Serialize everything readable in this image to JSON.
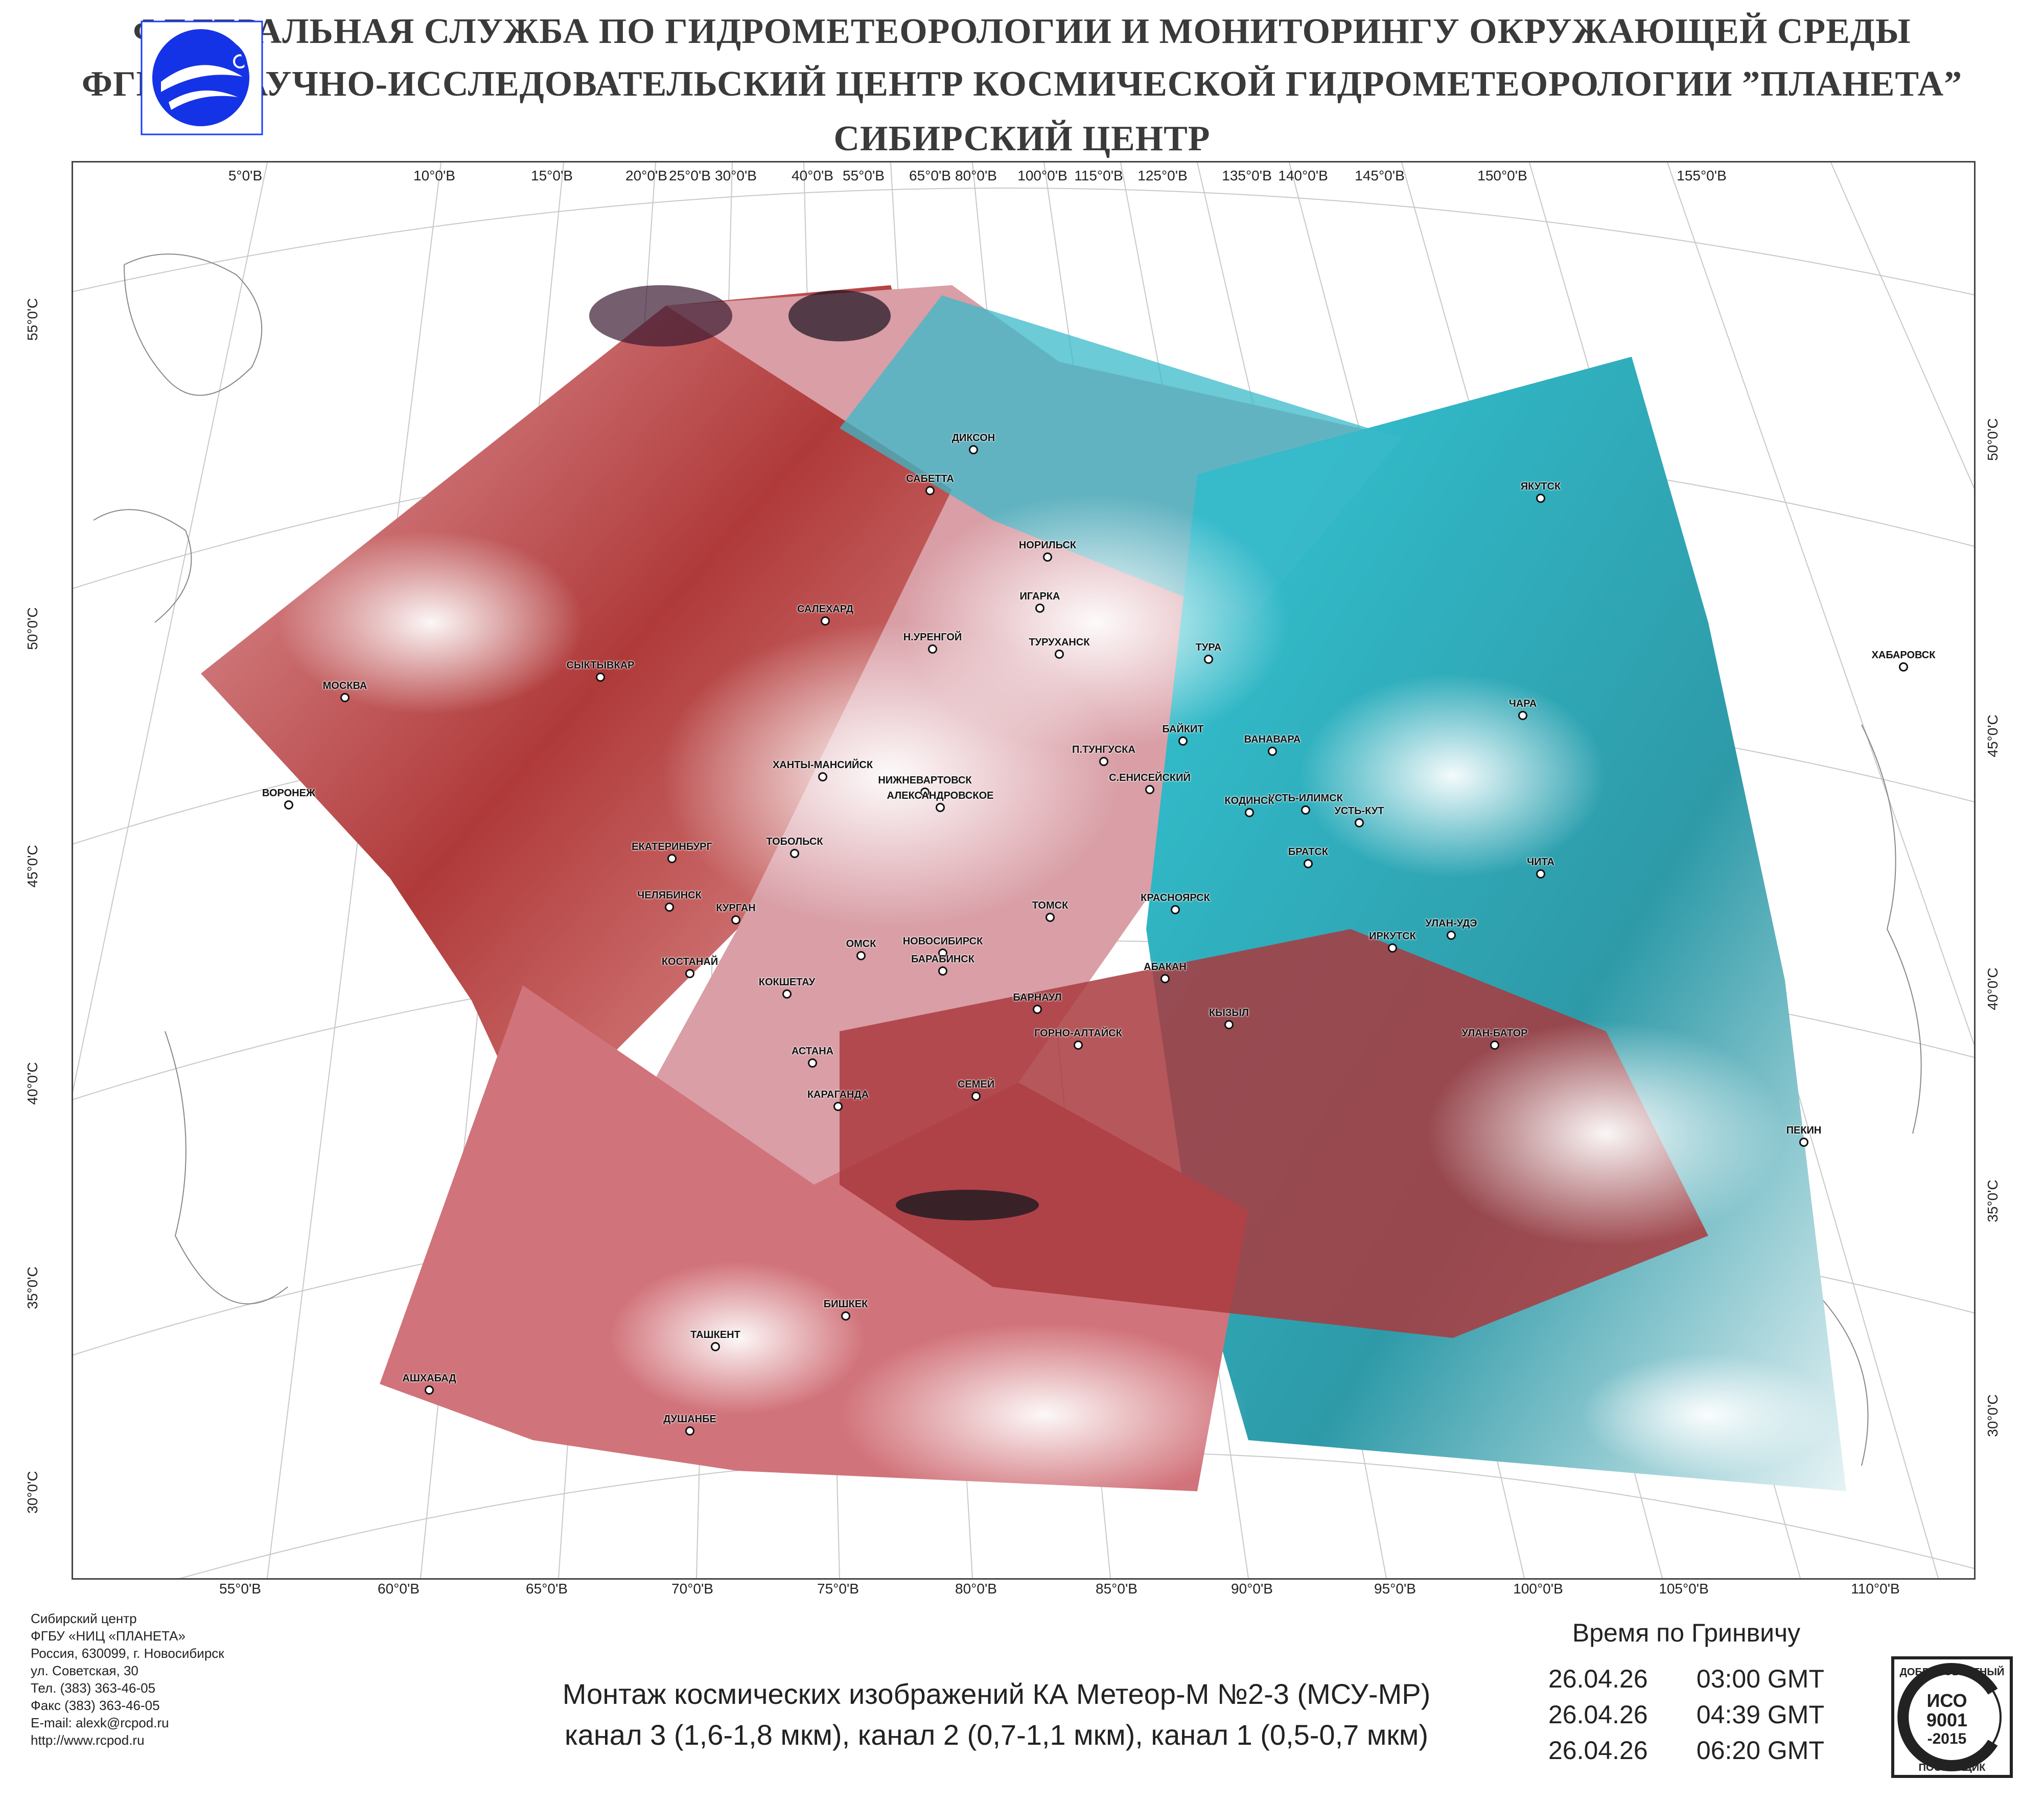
{
  "header": {
    "line1": "ФЕДЕРАЛЬНАЯ СЛУЖБА ПО ГИДРОМЕТЕОРОЛОГИИ И МОНИТОРИНГУ ОКРУЖАЮЩЕЙ СРЕДЫ",
    "line2": "ФГБУ “НАУЧНО-ИССЛЕДОВАТЕЛЬСКИЙ ЦЕНТР КОСМИЧЕСКОЙ ГИДРОМЕТЕОРОЛОГИИ ”ПЛАНЕТА”",
    "line3": "СИБИРСКИЙ  ЦЕНТР"
  },
  "map": {
    "top_labels": [
      "5°0'В",
      "10°0'В",
      "15°0'В",
      "20°0'В",
      "25°0'В",
      "30°0'В",
      "40°0'В",
      "55°0'В",
      "65°0'В",
      "80°0'В",
      "100°0'В",
      "115°0'В",
      "125°0'В",
      "135°0'В",
      "140°0'В",
      "145°0'В",
      "150°0'В",
      "155°0'В"
    ],
    "bottom_labels": [
      "55°0'В",
      "60°0'В",
      "65°0'В",
      "70°0'В",
      "75°0'В",
      "80°0'В",
      "85°0'В",
      "90°0'В",
      "95°0'В",
      "100°0'В",
      "105°0'В",
      "110°0'В"
    ],
    "left_labels": [
      "55°0'С",
      "50°0'С",
      "45°0'С",
      "40°0'С",
      "35°0'С",
      "30°0'С"
    ],
    "right_labels": [
      "50°0'С",
      "45°0'С",
      "40°0'С",
      "35°0'С",
      "30°0'С"
    ],
    "cities": [
      {
        "name": "ДИКСОН"
      },
      {
        "name": "САБЕТТА"
      },
      {
        "name": "НОРИЛЬСК"
      },
      {
        "name": "ЯКУТСК"
      },
      {
        "name": "ИГАРКА"
      },
      {
        "name": "САЛЕХАРД"
      },
      {
        "name": "Н.УРЕНГОЙ"
      },
      {
        "name": "ТУРУХАНСК"
      },
      {
        "name": "ТУРА"
      },
      {
        "name": "ХАБАРОВСК"
      },
      {
        "name": "СЫКТЫВКАР"
      },
      {
        "name": "МОСКВА"
      },
      {
        "name": "ЧАРА"
      },
      {
        "name": "БАЙКИТ"
      },
      {
        "name": "ВАНАВАРА"
      },
      {
        "name": "П.ТУНГУСКА"
      },
      {
        "name": "ХАНТЫ-МАНСИЙСК"
      },
      {
        "name": "НИЖНЕВАРТОВСК"
      },
      {
        "name": "ВОРОНЕЖ"
      },
      {
        "name": "С.ЕНИСЕЙСКИЙ"
      },
      {
        "name": "УСТЬ-ИЛИМСК"
      },
      {
        "name": "КОДИНСК"
      },
      {
        "name": "УСТЬ-КУТ"
      },
      {
        "name": "АЛЕКСАНДРОВСКОЕ"
      },
      {
        "name": "ЕКАТЕРИНБУРГ"
      },
      {
        "name": "ТОБОЛЬСК"
      },
      {
        "name": "ЧИТА"
      },
      {
        "name": "БРАТСК"
      },
      {
        "name": "ЧЕЛЯБИНСК"
      },
      {
        "name": "ТОМСК"
      },
      {
        "name": "КРАСНОЯРСК"
      },
      {
        "name": "КУРГАН"
      },
      {
        "name": "ОМСК"
      },
      {
        "name": "НОВОСИБИРСК"
      },
      {
        "name": "ИРКУТСК"
      },
      {
        "name": "УЛАН-УДЭ"
      },
      {
        "name": "БАРАБИНСК"
      },
      {
        "name": "КОСТАНАЙ"
      },
      {
        "name": "КОКШЕТАУ"
      },
      {
        "name": "БАРНАУЛ"
      },
      {
        "name": "АБАКАН"
      },
      {
        "name": "КЫЗЫЛ"
      },
      {
        "name": "ГОРНО-АЛТАЙСК"
      },
      {
        "name": "УЛАН-БАТОР"
      },
      {
        "name": "АСТАНА"
      },
      {
        "name": "СЕМЕЙ"
      },
      {
        "name": "КАРАГАНДА"
      },
      {
        "name": "ПЕКИН"
      },
      {
        "name": "БИШКЕК"
      },
      {
        "name": "ТАШКЕНТ"
      },
      {
        "name": "АШХАБАД"
      },
      {
        "name": "ДУШАНБЕ"
      }
    ]
  },
  "address": {
    "lines": [
      "Сибирский центр",
      "ФГБУ «НИЦ «ПЛАНЕТА»",
      "Россия, 630099, г. Новосибирск",
      "ул. Советская, 30",
      "Тел. (383) 363-46-05",
      "Факс (383) 363-46-05",
      "E-mail: alexk@rcpod.ru",
      "http://www.rcpod.ru"
    ]
  },
  "caption": {
    "line1": "Монтаж космических изображений КА Метеор-М №2-3 (МСУ-МР)",
    "line2": "канал 3 (1,6-1,8 мкм), канал 2 (0,7-1,1 мкм), канал 1 (0,5-0,7 мкм)"
  },
  "time": {
    "title": "Время по Гринвичу",
    "rows": [
      {
        "date": "26.04.26",
        "time": "03:00 GMT"
      },
      {
        "date": "26.04.26",
        "time": "04:39 GMT"
      },
      {
        "date": "26.04.26",
        "time": "06:20 GMT"
      }
    ]
  },
  "iso": {
    "top_text": "ДОБРОСОВЕСТНЫЙ",
    "line1": "ИСО",
    "line2": "9001",
    "line3": "-2015",
    "bottom_text": "ПОСТАВЩИК"
  }
}
